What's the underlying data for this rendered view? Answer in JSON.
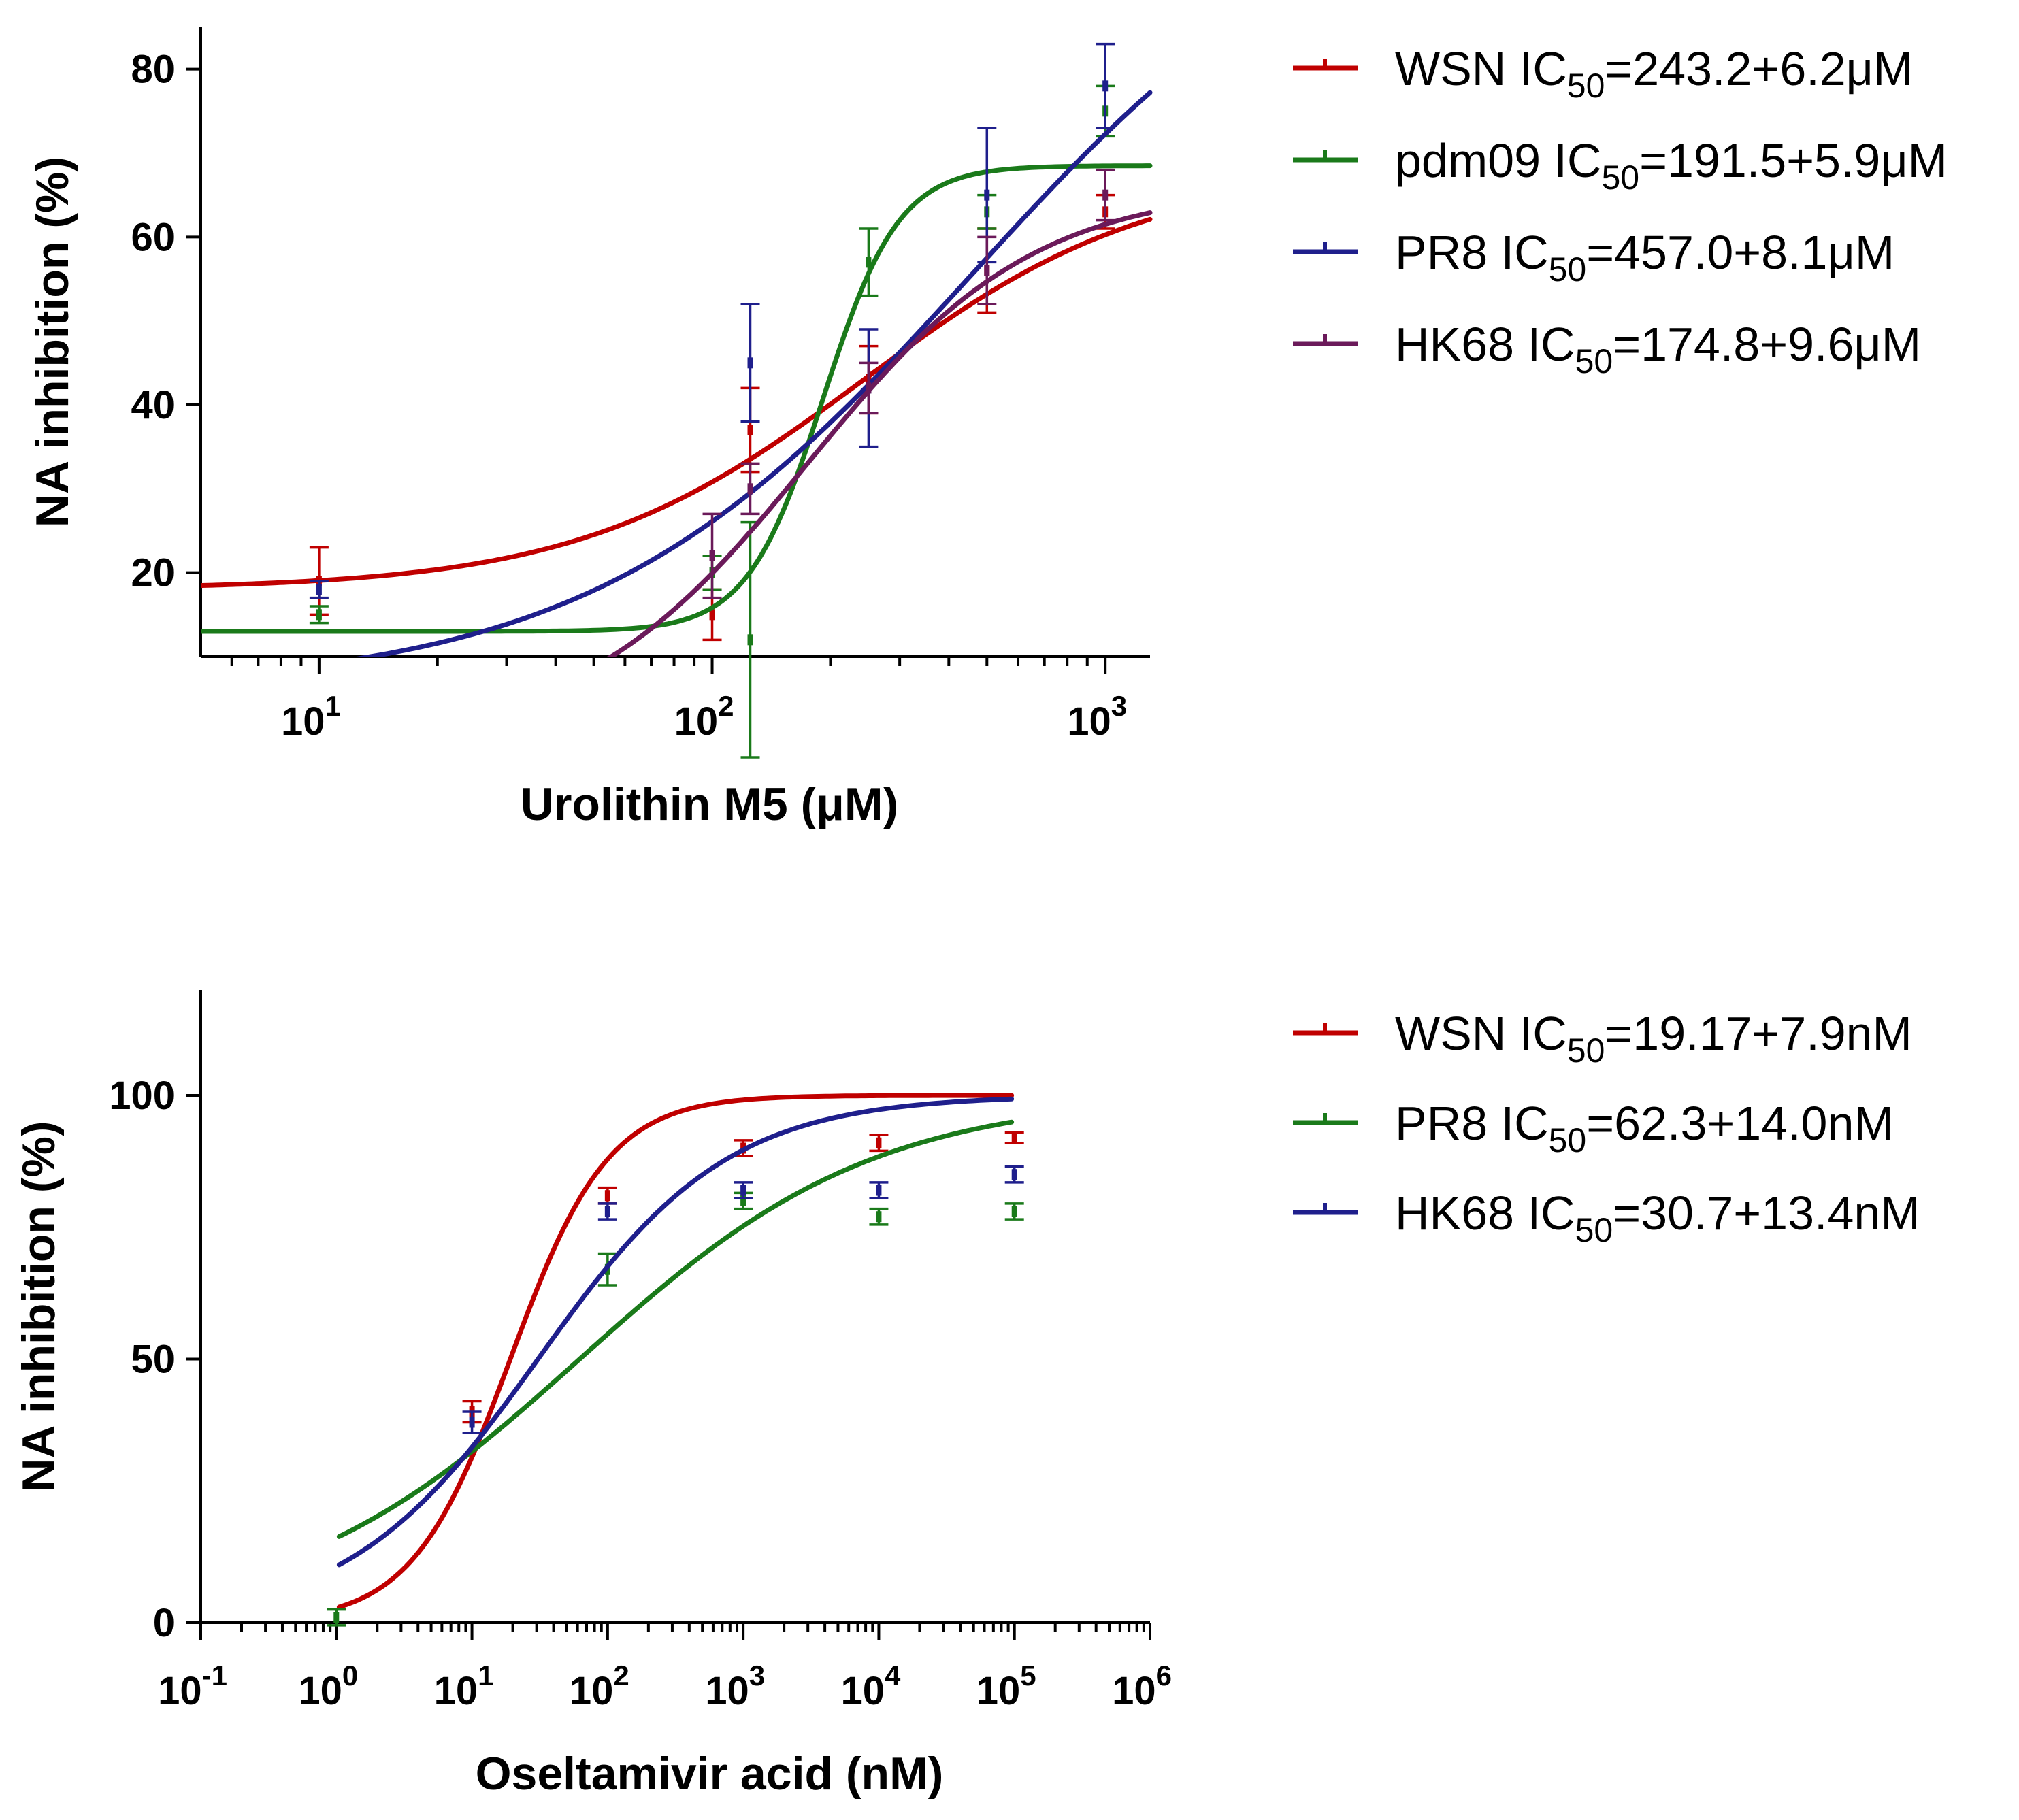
{
  "chart_data": [
    {
      "type": "line",
      "xscale": "log",
      "xlabel": "Urolithin M5 (μM)",
      "ylabel": "NA inhibition (%)",
      "xlim": [
        5,
        1300
      ],
      "ylim": [
        10,
        85
      ],
      "xticks": [
        {
          "value": 10,
          "base": "10",
          "exp": "1"
        },
        {
          "value": 100,
          "base": "10",
          "exp": "2"
        },
        {
          "value": 1000,
          "base": "10",
          "exp": "3"
        }
      ],
      "yticks": [
        {
          "value": 20,
          "label": "20"
        },
        {
          "value": 40,
          "label": "40"
        },
        {
          "value": 60,
          "label": "60"
        },
        {
          "value": 80,
          "label": "80"
        }
      ],
      "series": [
        {
          "name": "WSN",
          "legend_prefix": "WSN IC",
          "legend_sub": "50",
          "legend_suffix": "=243.2+6.2μM",
          "color": "#c00000",
          "curve": {
            "bottom": 18,
            "top": 68,
            "ec50": 243.2,
            "hill": 1.2
          },
          "points": [
            {
              "x": 10,
              "y": 19,
              "err": 4
            },
            {
              "x": 100,
              "y": 15,
              "err": 3
            },
            {
              "x": 125,
              "y": 37,
              "err": 5
            },
            {
              "x": 250,
              "y": 43,
              "err": 4
            },
            {
              "x": 500,
              "y": 56,
              "err": 5
            },
            {
              "x": 1000,
              "y": 63,
              "err": 2
            }
          ]
        },
        {
          "name": "pdm09",
          "legend_prefix": "pdm09 IC",
          "legend_sub": "50",
          "legend_suffix": "=191.5+5.9μM",
          "color": "#1a7a1a",
          "curve": {
            "bottom": 13,
            "top": 68.5,
            "ec50": 191.5,
            "hill": 4.5
          },
          "points": [
            {
              "x": 10,
              "y": 15,
              "err": 1
            },
            {
              "x": 100,
              "y": 20,
              "err": 2
            },
            {
              "x": 125,
              "y": 12,
              "err": 14
            },
            {
              "x": 250,
              "y": 57,
              "err": 4
            },
            {
              "x": 500,
              "y": 63,
              "err": 2
            },
            {
              "x": 1000,
              "y": 75,
              "err": 3
            }
          ]
        },
        {
          "name": "PR8",
          "legend_prefix": "PR8 IC",
          "legend_sub": "50",
          "legend_suffix": "=457.0+8.1μM",
          "color": "#1f1f8c",
          "curve": {
            "bottom": 6,
            "top": 105,
            "ec50": 457,
            "hill": 0.9
          },
          "points": [
            {
              "x": 10,
              "y": 18,
              "err": 1
            },
            {
              "x": 125,
              "y": 45,
              "err": 7
            },
            {
              "x": 250,
              "y": 42,
              "err": 7
            },
            {
              "x": 500,
              "y": 65,
              "err": 8
            },
            {
              "x": 1000,
              "y": 78,
              "err": 5
            }
          ]
        },
        {
          "name": "HK68",
          "legend_prefix": "HK68 IC",
          "legend_sub": "50",
          "legend_suffix": "=174.8+9.6μM",
          "color": "#6b1a5a",
          "curve": {
            "bottom": 0,
            "top": 66,
            "ec50": 174.8,
            "hill": 1.5
          },
          "points": [
            {
              "x": 100,
              "y": 22,
              "err": 5
            },
            {
              "x": 125,
              "y": 30,
              "err": 3
            },
            {
              "x": 250,
              "y": 42,
              "err": 3
            },
            {
              "x": 500,
              "y": 56,
              "err": 4
            },
            {
              "x": 1000,
              "y": 65,
              "err": 3
            }
          ]
        }
      ]
    },
    {
      "type": "line",
      "xscale": "log",
      "xlabel": "Oseltamivir acid (nM)",
      "ylabel": "NA inhibition (%)",
      "xlim": [
        0.1,
        1000000
      ],
      "ylim": [
        0,
        120
      ],
      "xticks": [
        {
          "value": 0.1,
          "base": "10",
          "exp": "-1"
        },
        {
          "value": 1,
          "base": "10",
          "exp": "0"
        },
        {
          "value": 10,
          "base": "10",
          "exp": "1"
        },
        {
          "value": 100,
          "base": "10",
          "exp": "2"
        },
        {
          "value": 1000,
          "base": "10",
          "exp": "3"
        },
        {
          "value": 10000,
          "base": "10",
          "exp": "4"
        },
        {
          "value": 100000,
          "base": "10",
          "exp": "5"
        },
        {
          "value": 1000000,
          "base": "10",
          "exp": "6"
        }
      ],
      "yticks": [
        {
          "value": 0,
          "label": "0"
        },
        {
          "value": 50,
          "label": "50"
        },
        {
          "value": 100,
          "label": "100"
        }
      ],
      "series": [
        {
          "name": "WSN",
          "legend_prefix": "WSN IC",
          "legend_sub": "50",
          "legend_suffix": "=19.17+7.9nM",
          "color": "#c00000",
          "curve": {
            "bottom": 0,
            "top": 100,
            "ec50": 19.17,
            "hill": 1.2
          },
          "points": [
            {
              "x": 10,
              "y": 40,
              "err": 2
            },
            {
              "x": 100,
              "y": 81,
              "err": 1.5
            },
            {
              "x": 1000,
              "y": 90,
              "err": 1.5
            },
            {
              "x": 10000,
              "y": 91,
              "err": 1.5
            },
            {
              "x": 100000,
              "y": 92,
              "err": 1
            }
          ]
        },
        {
          "name": "PR8",
          "legend_prefix": "PR8 IC",
          "legend_sub": "50",
          "legend_suffix": "=62.3+14.0nM",
          "color": "#1a7a1a",
          "curve": {
            "bottom": 0,
            "top": 100,
            "ec50": 62.3,
            "hill": 0.4
          },
          "points": [
            {
              "x": 1,
              "y": 1,
              "err": 1.5
            },
            {
              "x": 100,
              "y": 67,
              "err": 3
            },
            {
              "x": 1000,
              "y": 80,
              "err": 1.5
            },
            {
              "x": 10000,
              "y": 77,
              "err": 1.5
            },
            {
              "x": 100000,
              "y": 78,
              "err": 1.5
            }
          ]
        },
        {
          "name": "HK68",
          "legend_prefix": "HK68 IC",
          "legend_sub": "50",
          "legend_suffix": "=30.7+13.4nM",
          "color": "#1f1f8c",
          "curve": {
            "bottom": 0,
            "top": 100,
            "ec50": 30.7,
            "hill": 0.62
          },
          "points": [
            {
              "x": 10,
              "y": 38,
              "err": 2
            },
            {
              "x": 100,
              "y": 78,
              "err": 1.5
            },
            {
              "x": 1000,
              "y": 82,
              "err": 1.5
            },
            {
              "x": 10000,
              "y": 82,
              "err": 1.5
            },
            {
              "x": 100000,
              "y": 85,
              "err": 1.5
            }
          ]
        }
      ]
    }
  ]
}
